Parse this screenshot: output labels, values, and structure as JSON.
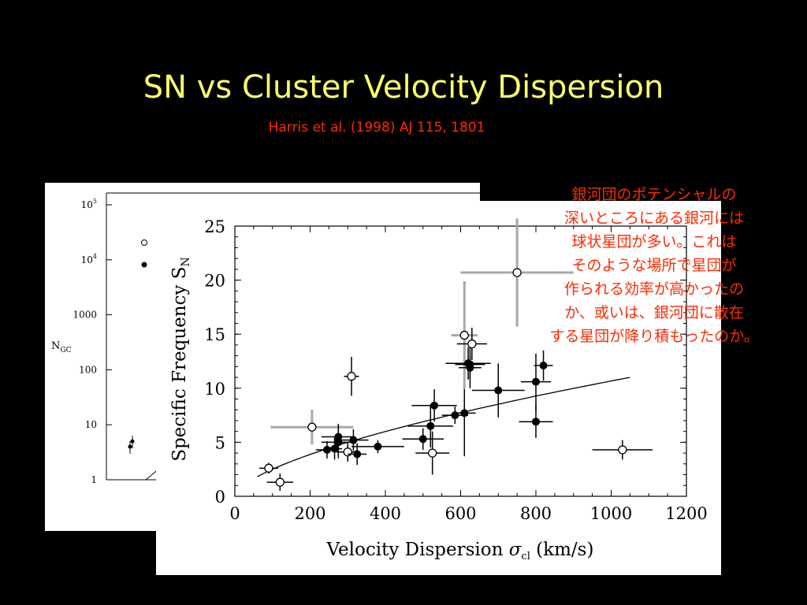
{
  "slide": {
    "title": "SN vs Cluster Velocity Dispersion",
    "citation": "Harris et al. (1998) AJ 115, 1801",
    "note_lines": [
      "銀河団のポテンシャルの",
      "深いところにある銀河には",
      "球状星団が多い。これは",
      "そのような場所で星団が",
      "作られる効率が高かったの",
      "か、或いは、銀河団に散在",
      "する星団が降り積もったのか。"
    ]
  },
  "colors": {
    "background": "#000000",
    "title": "#ffff66",
    "accent_text": "#ff2a00",
    "panel": "#ffffff",
    "marker": "#000000",
    "error_bar_gray": "#a8a8a8"
  },
  "chart_data": [
    {
      "type": "scatter",
      "ylabel": "N_GC",
      "yscale": "log",
      "yticks": [
        "1",
        "10",
        "100",
        "1000",
        "10^4",
        "10^5"
      ],
      "ylim": [
        1,
        100000
      ],
      "legend_markers": [
        "open-circle",
        "filled-circle"
      ],
      "points": [
        {
          "marker": "filled",
          "y": 4
        },
        {
          "marker": "filled",
          "y": 5
        }
      ]
    },
    {
      "type": "scatter",
      "xlabel": "Velocity Dispersion σ_cl (km/s)",
      "ylabel": "Specific Frequency S_N",
      "xlim": [
        0,
        1200
      ],
      "ylim": [
        0,
        25
      ],
      "xticks": [
        "0",
        "200",
        "400",
        "600",
        "800",
        "1000",
        "1200"
      ],
      "yticks": [
        "0",
        "5",
        "10",
        "15",
        "20",
        "25"
      ],
      "grid": false,
      "points": [
        {
          "x": 90,
          "y": 2.6,
          "marker": "open",
          "xerr": 25,
          "yerr": 0.5
        },
        {
          "x": 120,
          "y": 1.3,
          "marker": "open",
          "xerr": 35,
          "yerr": 0.8
        },
        {
          "x": 205,
          "y": 6.4,
          "marker": "open",
          "xerr": 110,
          "yerr": 1.6
        },
        {
          "x": 245,
          "y": 4.3,
          "marker": "filled",
          "xerr": 30,
          "yerr": 0.8
        },
        {
          "x": 265,
          "y": 4.4,
          "marker": "filled",
          "xerr": 20,
          "yerr": 1.0
        },
        {
          "x": 275,
          "y": 5.0,
          "marker": "filled",
          "xerr": 45,
          "yerr": 1.5
        },
        {
          "x": 275,
          "y": 5.5,
          "marker": "filled",
          "xerr": 45,
          "yerr": 1.2
        },
        {
          "x": 300,
          "y": 4.1,
          "marker": "open",
          "xerr": 30,
          "yerr": 0.9
        },
        {
          "x": 315,
          "y": 5.2,
          "marker": "filled",
          "xerr": 40,
          "yerr": 1.0
        },
        {
          "x": 310,
          "y": 11.1,
          "marker": "open",
          "xerr": 20,
          "yerr": 1.8
        },
        {
          "x": 325,
          "y": 3.9,
          "marker": "filled",
          "xerr": 25,
          "yerr": 1.0
        },
        {
          "x": 380,
          "y": 4.6,
          "marker": "filled",
          "xerr": 70,
          "yerr": 0.6
        },
        {
          "x": 500,
          "y": 5.3,
          "marker": "filled",
          "xerr": 55,
          "yerr": 1.0
        },
        {
          "x": 520,
          "y": 6.5,
          "marker": "filled",
          "xerr": 60,
          "yerr": 2.0
        },
        {
          "x": 525,
          "y": 4.0,
          "marker": "open",
          "xerr": 45,
          "yerr": 2.0
        },
        {
          "x": 530,
          "y": 8.4,
          "marker": "filled",
          "xerr": 60,
          "yerr": 1.5
        },
        {
          "x": 585,
          "y": 7.5,
          "marker": "filled",
          "xerr": 35,
          "yerr": 0.8
        },
        {
          "x": 610,
          "y": 7.7,
          "marker": "filled",
          "xerr": 30,
          "yerr": 4.0
        },
        {
          "x": 610,
          "y": 14.9,
          "marker": "open",
          "xerr": 35,
          "yerr": 5.0
        },
        {
          "x": 620,
          "y": 12.3,
          "marker": "filled",
          "xerr": 60,
          "yerr": 1.5
        },
        {
          "x": 625,
          "y": 11.9,
          "marker": "filled",
          "xerr": 30,
          "yerr": 1.0
        },
        {
          "x": 625,
          "y": 12.2,
          "marker": "filled",
          "xerr": 40,
          "yerr": 2.2
        },
        {
          "x": 630,
          "y": 14.1,
          "marker": "open",
          "xerr": 40,
          "yerr": 1.5
        },
        {
          "x": 700,
          "y": 9.8,
          "marker": "filled",
          "xerr": 70,
          "yerr": 2.5
        },
        {
          "x": 750,
          "y": 20.7,
          "marker": "open",
          "xerr": 150,
          "yerr": 5.0
        },
        {
          "x": 800,
          "y": 10.6,
          "marker": "filled",
          "xerr": 40,
          "yerr": 2.6
        },
        {
          "x": 800,
          "y": 6.9,
          "marker": "filled",
          "xerr": 45,
          "yerr": 1.5
        },
        {
          "x": 820,
          "y": 12.1,
          "marker": "filled",
          "xerr": 25,
          "yerr": 1.4
        },
        {
          "x": 1030,
          "y": 4.3,
          "marker": "open",
          "xerr": 80,
          "yerr": 0.9
        }
      ],
      "fit_curve": {
        "form": "power-law",
        "x_range": [
          60,
          1050
        ],
        "y_at_1050": 11.0,
        "exponent": 0.63
      }
    }
  ]
}
